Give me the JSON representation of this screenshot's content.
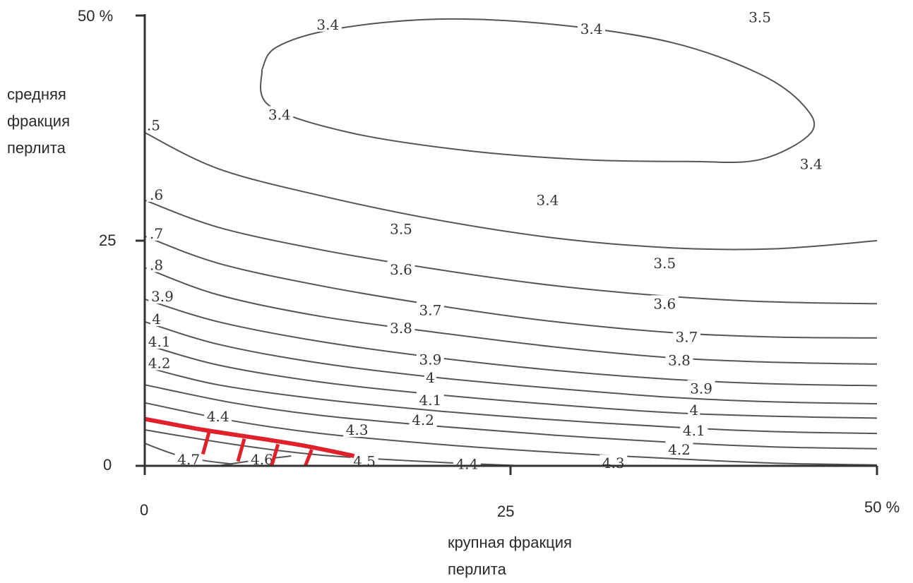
{
  "chart_data": {
    "type": "contour",
    "xlabel": [
      "крупная фракция",
      "перлита"
    ],
    "ylabel": [
      "средняя",
      "фракция",
      "перлита"
    ],
    "x_ticks": [
      "0",
      "25",
      "50 %"
    ],
    "y_ticks": [
      "0",
      "25",
      "50  %"
    ],
    "xlim": [
      0,
      50
    ],
    "ylim": [
      0,
      50
    ],
    "grid": false,
    "colors": {
      "contour": "#555555",
      "axis": "#333333",
      "boundary": "#e0202a"
    },
    "contours": [
      {
        "level": "3.4",
        "closed": true,
        "points": [
          [
            8,
            44
          ],
          [
            8.5,
            40
          ],
          [
            14,
            37
          ],
          [
            22,
            35
          ],
          [
            30,
            34
          ],
          [
            37,
            33.8
          ],
          [
            42,
            34
          ],
          [
            45.5,
            37
          ],
          [
            45,
            40
          ],
          [
            42,
            43.5
          ],
          [
            36,
            47
          ],
          [
            28,
            49
          ],
          [
            20,
            49.6
          ],
          [
            13,
            48.5
          ],
          [
            9,
            46.5
          ],
          [
            8,
            44
          ]
        ],
        "labels": [
          {
            "x": 12.5,
            "y": 49,
            "text": "3.4"
          },
          {
            "x": 30.5,
            "y": 48.5,
            "text": "3.4"
          },
          {
            "x": 9.2,
            "y": 39,
            "text": "3.4"
          },
          {
            "x": 45.5,
            "y": 33.5,
            "text": "3.4"
          },
          {
            "x": 27.5,
            "y": 29.5,
            "text": "3.4"
          }
        ]
      },
      {
        "level": "3.5",
        "points": [
          [
            0,
            37
          ],
          [
            5,
            33
          ],
          [
            12,
            30
          ],
          [
            20,
            27.3
          ],
          [
            28,
            25.3
          ],
          [
            36,
            24.2
          ],
          [
            43,
            24.1
          ],
          [
            50,
            25
          ]
        ],
        "labels": [
          {
            "x": 0.6,
            "y": 37.8,
            "text": ".5"
          },
          {
            "x": 17.5,
            "y": 26.3,
            "text": "3.5"
          },
          {
            "x": 35.5,
            "y": 22.5,
            "text": "3.5"
          },
          {
            "x": 42,
            "y": 49.8,
            "text": "3.5"
          }
        ]
      },
      {
        "level": "3.6",
        "points": [
          [
            0,
            29.5
          ],
          [
            5,
            26.5
          ],
          [
            12,
            24
          ],
          [
            20,
            21.8
          ],
          [
            28,
            20
          ],
          [
            36,
            18.8
          ],
          [
            43,
            18.2
          ],
          [
            50,
            18
          ]
        ],
        "labels": [
          {
            "x": 0.8,
            "y": 30.1,
            "text": ".6"
          },
          {
            "x": 17.5,
            "y": 21.8,
            "text": "3.6"
          },
          {
            "x": 35.5,
            "y": 18,
            "text": "3.6"
          }
        ]
      },
      {
        "level": "3.7",
        "points": [
          [
            0,
            25.5
          ],
          [
            5,
            22.5
          ],
          [
            12,
            20
          ],
          [
            20,
            17.8
          ],
          [
            28,
            16
          ],
          [
            36,
            14.8
          ],
          [
            43,
            14.3
          ],
          [
            50,
            14.2
          ]
        ],
        "labels": [
          {
            "x": 0.8,
            "y": 25.8,
            "text": ".7"
          },
          {
            "x": 19.5,
            "y": 17.3,
            "text": "3.7"
          },
          {
            "x": 37,
            "y": 14.3,
            "text": "3.7"
          }
        ]
      },
      {
        "level": "3.8",
        "points": [
          [
            0,
            22
          ],
          [
            5,
            19
          ],
          [
            12,
            16.6
          ],
          [
            20,
            14.8
          ],
          [
            28,
            13.2
          ],
          [
            36,
            12
          ],
          [
            43,
            11.5
          ],
          [
            50,
            11.3
          ]
        ],
        "labels": [
          {
            "x": 0.8,
            "y": 22.3,
            "text": ".8"
          },
          {
            "x": 17.5,
            "y": 15.3,
            "text": "3.8"
          },
          {
            "x": 36.5,
            "y": 11.7,
            "text": "3.8"
          }
        ]
      },
      {
        "level": "3.9",
        "points": [
          [
            0,
            18.5
          ],
          [
            5,
            16
          ],
          [
            12,
            13.8
          ],
          [
            20,
            12
          ],
          [
            28,
            10.6
          ],
          [
            36,
            9.6
          ],
          [
            43,
            9.1
          ],
          [
            50,
            8.9
          ]
        ],
        "labels": [
          {
            "x": 1.2,
            "y": 18.8,
            "text": "3.9"
          },
          {
            "x": 19.5,
            "y": 11.8,
            "text": "3.9"
          },
          {
            "x": 38,
            "y": 8.6,
            "text": "3.9"
          }
        ]
      },
      {
        "level": "4",
        "points": [
          [
            0,
            16
          ],
          [
            5,
            13.5
          ],
          [
            12,
            11.4
          ],
          [
            20,
            9.8
          ],
          [
            28,
            8.6
          ],
          [
            36,
            7.6
          ],
          [
            43,
            7.1
          ],
          [
            50,
            6.9
          ]
        ],
        "labels": [
          {
            "x": 0.8,
            "y": 16.3,
            "text": "4"
          },
          {
            "x": 19.5,
            "y": 9.8,
            "text": "4"
          },
          {
            "x": 37.5,
            "y": 6.2,
            "text": "4"
          }
        ]
      },
      {
        "level": "4.1",
        "points": [
          [
            0,
            13.5
          ],
          [
            5,
            11.2
          ],
          [
            12,
            9.3
          ],
          [
            20,
            7.9
          ],
          [
            28,
            6.8
          ],
          [
            36,
            5.9
          ],
          [
            43,
            5.5
          ],
          [
            50,
            5.3
          ]
        ],
        "labels": [
          {
            "x": 1,
            "y": 13.8,
            "text": "4.1"
          },
          {
            "x": 19.5,
            "y": 7.3,
            "text": "4.1"
          },
          {
            "x": 37.5,
            "y": 3.9,
            "text": "4.1"
          }
        ]
      },
      {
        "level": "4.2",
        "points": [
          [
            0,
            11
          ],
          [
            5,
            9
          ],
          [
            12,
            7.4
          ],
          [
            20,
            6.1
          ],
          [
            28,
            5.1
          ],
          [
            36,
            4.3
          ],
          [
            43,
            3.8
          ],
          [
            50,
            3.6
          ]
        ],
        "labels": [
          {
            "x": 1,
            "y": 11.4,
            "text": "4.2"
          },
          {
            "x": 19,
            "y": 5.1,
            "text": "4.2"
          },
          {
            "x": 36.5,
            "y": 1.8,
            "text": "4.2"
          }
        ]
      },
      {
        "level": "4.3",
        "points": [
          [
            0,
            9
          ],
          [
            6,
            7
          ],
          [
            12,
            5.6
          ],
          [
            20,
            4.4
          ],
          [
            28,
            3.4
          ],
          [
            36,
            2.6
          ],
          [
            43,
            2.1
          ],
          [
            50,
            1.9
          ]
        ],
        "labels": [
          {
            "x": 14.5,
            "y": 4,
            "text": "4.3"
          },
          {
            "x": 32,
            "y": 0.3,
            "text": "4.3"
          }
        ]
      },
      {
        "level": "4.4",
        "points": [
          [
            0,
            7
          ],
          [
            6,
            5
          ],
          [
            12,
            3.6
          ],
          [
            20,
            2.4
          ],
          [
            28,
            1.5
          ],
          [
            36,
            0.8
          ],
          [
            43,
            0.3
          ],
          [
            50,
            0.1
          ]
        ],
        "labels": [
          {
            "x": 5,
            "y": 5.5,
            "text": "4.4"
          },
          {
            "x": 22,
            "y": 0.2,
            "text": "4.4"
          }
        ]
      },
      {
        "level": "4.5",
        "points": [
          [
            0,
            4
          ],
          [
            6,
            2.4
          ],
          [
            12,
            1.2
          ],
          [
            20,
            0.4
          ],
          [
            26,
            0
          ]
        ],
        "labels": [
          {
            "x": 15,
            "y": 0.5,
            "text": "4.5"
          }
        ]
      },
      {
        "level": "4.6",
        "points": [
          [
            5,
            0
          ],
          [
            7.5,
            0.6
          ],
          [
            10,
            1.1
          ]
        ],
        "labels": [
          {
            "x": 8,
            "y": 0.7,
            "text": "4.6"
          }
        ]
      },
      {
        "level": "4.7",
        "points": [
          [
            0,
            2.5
          ],
          [
            2,
            1.3
          ],
          [
            4,
            0.6
          ],
          [
            6,
            0.2
          ]
        ],
        "labels": [
          {
            "x": 3,
            "y": 0.7,
            "text": "4.7"
          }
        ]
      }
    ],
    "boundary": {
      "points": [
        [
          0,
          5.2
        ],
        [
          4,
          4
        ],
        [
          8,
          3
        ],
        [
          11,
          2.2
        ],
        [
          14.3,
          1.1
        ]
      ],
      "hatches": [
        [
          4.4,
          3.8
        ],
        [
          6.8,
          3.0
        ],
        [
          9.1,
          2.4
        ],
        [
          11.4,
          1.8
        ]
      ]
    }
  }
}
